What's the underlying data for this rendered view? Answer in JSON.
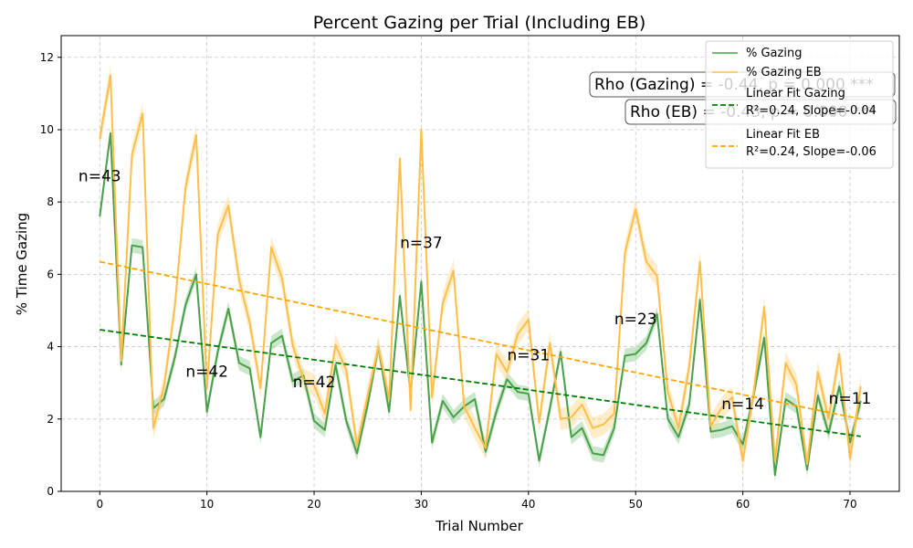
{
  "chart_data": {
    "type": "line",
    "title": "Percent Gazing per Trial (Including EB)",
    "xlabel": "Trial Number",
    "ylabel": "% Time Gazing",
    "xlim": [
      -3.6,
      74.6
    ],
    "ylim": [
      0,
      12.6
    ],
    "xticks": [
      0,
      10,
      20,
      30,
      40,
      50,
      60,
      70
    ],
    "yticks": [
      0,
      2,
      4,
      6,
      8,
      10,
      12
    ],
    "grid": true,
    "legend_position": "top-right",
    "colors": {
      "gazing": "#4a9f4a",
      "gazing_band": "#8cc98c",
      "eb": "#ffbe4a",
      "eb_band": "#ffd68a",
      "fit_gazing": "#008000",
      "fit_eb": "#ffa500"
    },
    "series": [
      {
        "name": "% Gazing",
        "x": [
          0,
          1,
          2,
          3,
          4,
          5,
          6,
          7,
          8,
          9,
          10,
          11,
          12,
          13,
          14,
          15,
          16,
          17,
          18,
          19,
          20,
          21,
          22,
          23,
          24,
          25,
          26,
          27,
          28,
          29,
          30,
          31,
          32,
          33,
          34,
          35,
          36,
          37,
          38,
          39,
          40,
          41,
          42,
          43,
          44,
          45,
          46,
          47,
          48,
          49,
          50,
          51,
          52,
          53,
          54,
          55,
          56,
          57,
          58,
          59,
          60,
          61,
          62,
          63,
          64,
          65,
          66,
          67,
          68,
          69,
          70,
          71
        ],
        "y": [
          7.6,
          9.9,
          3.5,
          6.8,
          6.75,
          2.3,
          2.55,
          3.7,
          5.15,
          6.0,
          2.2,
          3.85,
          5.05,
          3.55,
          3.4,
          1.5,
          4.1,
          4.3,
          3.05,
          3.2,
          1.95,
          1.7,
          3.5,
          1.95,
          1.05,
          2.4,
          4.0,
          2.2,
          5.4,
          2.7,
          5.8,
          1.35,
          2.5,
          2.05,
          2.35,
          2.55,
          1.1,
          2.2,
          3.1,
          2.75,
          2.7,
          0.85,
          2.3,
          3.85,
          1.5,
          1.75,
          1.05,
          1.0,
          1.75,
          3.75,
          3.8,
          4.1,
          4.9,
          2.0,
          1.5,
          2.4,
          5.3,
          1.65,
          1.7,
          1.8,
          1.3,
          2.65,
          4.25,
          0.45,
          2.55,
          2.35,
          0.6,
          2.65,
          1.6,
          2.9,
          1.35,
          2.5
        ],
        "band": 0.2
      },
      {
        "name": "% Gazing EB",
        "x": [
          0,
          1,
          2,
          3,
          4,
          5,
          6,
          7,
          8,
          9,
          10,
          11,
          12,
          13,
          14,
          15,
          16,
          17,
          18,
          19,
          20,
          21,
          22,
          23,
          24,
          25,
          26,
          27,
          28,
          29,
          30,
          31,
          32,
          33,
          34,
          35,
          36,
          37,
          38,
          39,
          40,
          41,
          42,
          43,
          44,
          45,
          46,
          47,
          48,
          49,
          50,
          51,
          52,
          53,
          54,
          55,
          56,
          57,
          58,
          59,
          60,
          61,
          62,
          63,
          64,
          65,
          66,
          67,
          68,
          69,
          70,
          71
        ],
        "y": [
          9.75,
          11.5,
          3.6,
          9.3,
          10.45,
          1.75,
          2.9,
          5.1,
          8.4,
          9.85,
          2.85,
          7.1,
          7.9,
          5.85,
          4.65,
          2.85,
          6.75,
          5.9,
          4.05,
          3.1,
          2.95,
          2.15,
          4.05,
          3.35,
          1.25,
          2.65,
          4.0,
          2.55,
          9.2,
          2.25,
          10.0,
          2.6,
          5.2,
          6.1,
          2.35,
          1.75,
          1.2,
          3.8,
          3.3,
          4.35,
          4.75,
          1.9,
          4.1,
          2.0,
          2.05,
          2.4,
          1.75,
          1.85,
          2.15,
          6.6,
          7.8,
          6.35,
          5.95,
          2.75,
          1.75,
          3.45,
          6.35,
          1.8,
          2.3,
          2.6,
          0.85,
          2.7,
          5.1,
          0.85,
          3.55,
          2.95,
          0.75,
          3.3,
          2.0,
          3.8,
          0.9,
          2.9
        ],
        "band": 0.3
      },
      {
        "name": "Linear Fit Gazing",
        "legend_line2": "R²=0.24, Slope=-0.04",
        "type": "dashed-line",
        "x": [
          0,
          71
        ],
        "y": [
          4.47,
          1.52
        ]
      },
      {
        "name": "Linear Fit EB",
        "legend_line2": "R²=0.24, Slope=-0.06",
        "type": "dashed-line",
        "x": [
          0,
          71
        ],
        "y": [
          6.35,
          2.0
        ]
      }
    ],
    "annotations": [
      {
        "text": "n=43",
        "x": 0,
        "y": 8.7
      },
      {
        "text": "n=42",
        "x": 10,
        "y": 3.3
      },
      {
        "text": "n=42",
        "x": 20,
        "y": 3.0
      },
      {
        "text": "n=37",
        "x": 30,
        "y": 6.85
      },
      {
        "text": "n=31",
        "x": 40,
        "y": 3.75
      },
      {
        "text": "n=23",
        "x": 50,
        "y": 4.75
      },
      {
        "text": "n=14",
        "x": 60,
        "y": 2.4
      },
      {
        "text": "n=11",
        "x": 70,
        "y": 2.55
      }
    ],
    "stats": {
      "rho_gazing": "Rho (Gazing) = -0.44, p = 0.000 ***",
      "rho_eb": "Rho (EB) = -0.43, p = 0.000 ***"
    }
  }
}
